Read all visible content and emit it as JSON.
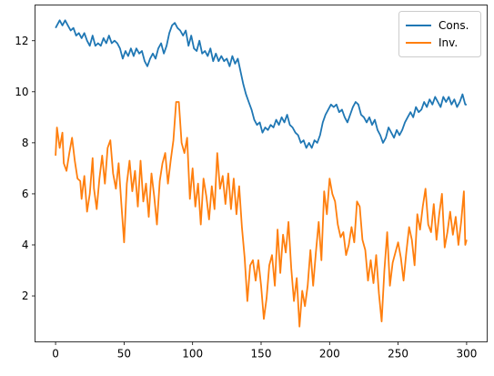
{
  "chart_data": {
    "type": "line",
    "title": "",
    "xlabel": "",
    "ylabel": "",
    "xlim": [
      -15,
      315
    ],
    "ylim": [
      0.2,
      13.4
    ],
    "xticks": [
      0,
      50,
      100,
      150,
      200,
      250,
      300
    ],
    "yticks": [
      2,
      4,
      6,
      8,
      10,
      12
    ],
    "grid": false,
    "legend_position": "top-right",
    "series": [
      {
        "name": "Cons.",
        "color": "#1f77b4",
        "points": [
          [
            0,
            12.5
          ],
          [
            3,
            12.8
          ],
          [
            5,
            12.6
          ],
          [
            7,
            12.8
          ],
          [
            9,
            12.6
          ],
          [
            11,
            12.4
          ],
          [
            13,
            12.5
          ],
          [
            15,
            12.2
          ],
          [
            17,
            12.3
          ],
          [
            19,
            12.1
          ],
          [
            21,
            12.3
          ],
          [
            23,
            12.0
          ],
          [
            25,
            11.8
          ],
          [
            27,
            12.2
          ],
          [
            29,
            11.8
          ],
          [
            31,
            11.9
          ],
          [
            33,
            11.8
          ],
          [
            35,
            12.1
          ],
          [
            37,
            11.9
          ],
          [
            39,
            12.2
          ],
          [
            41,
            11.9
          ],
          [
            43,
            12.0
          ],
          [
            45,
            11.9
          ],
          [
            47,
            11.7
          ],
          [
            49,
            11.3
          ],
          [
            51,
            11.6
          ],
          [
            53,
            11.4
          ],
          [
            55,
            11.7
          ],
          [
            57,
            11.4
          ],
          [
            59,
            11.7
          ],
          [
            61,
            11.5
          ],
          [
            63,
            11.6
          ],
          [
            65,
            11.2
          ],
          [
            67,
            11.0
          ],
          [
            69,
            11.3
          ],
          [
            71,
            11.5
          ],
          [
            73,
            11.3
          ],
          [
            75,
            11.7
          ],
          [
            77,
            11.9
          ],
          [
            79,
            11.5
          ],
          [
            81,
            11.8
          ],
          [
            83,
            12.3
          ],
          [
            85,
            12.6
          ],
          [
            87,
            12.7
          ],
          [
            89,
            12.5
          ],
          [
            91,
            12.4
          ],
          [
            93,
            12.2
          ],
          [
            95,
            12.4
          ],
          [
            97,
            11.8
          ],
          [
            99,
            12.2
          ],
          [
            101,
            11.7
          ],
          [
            103,
            11.6
          ],
          [
            105,
            12.0
          ],
          [
            107,
            11.5
          ],
          [
            109,
            11.6
          ],
          [
            111,
            11.4
          ],
          [
            113,
            11.7
          ],
          [
            115,
            11.2
          ],
          [
            117,
            11.5
          ],
          [
            119,
            11.2
          ],
          [
            121,
            11.4
          ],
          [
            123,
            11.2
          ],
          [
            125,
            11.3
          ],
          [
            127,
            11.0
          ],
          [
            129,
            11.4
          ],
          [
            131,
            11.1
          ],
          [
            133,
            11.3
          ],
          [
            135,
            10.8
          ],
          [
            137,
            10.3
          ],
          [
            139,
            9.9
          ],
          [
            141,
            9.6
          ],
          [
            143,
            9.3
          ],
          [
            145,
            8.9
          ],
          [
            147,
            8.7
          ],
          [
            149,
            8.8
          ],
          [
            151,
            8.4
          ],
          [
            153,
            8.6
          ],
          [
            155,
            8.5
          ],
          [
            157,
            8.7
          ],
          [
            159,
            8.6
          ],
          [
            161,
            8.9
          ],
          [
            163,
            8.7
          ],
          [
            165,
            9.0
          ],
          [
            167,
            8.8
          ],
          [
            169,
            9.1
          ],
          [
            171,
            8.7
          ],
          [
            173,
            8.6
          ],
          [
            175,
            8.4
          ],
          [
            177,
            8.3
          ],
          [
            179,
            8.0
          ],
          [
            181,
            8.1
          ],
          [
            183,
            7.8
          ],
          [
            185,
            8.0
          ],
          [
            187,
            7.8
          ],
          [
            189,
            8.1
          ],
          [
            191,
            8.0
          ],
          [
            193,
            8.3
          ],
          [
            195,
            8.8
          ],
          [
            197,
            9.1
          ],
          [
            199,
            9.3
          ],
          [
            201,
            9.5
          ],
          [
            203,
            9.4
          ],
          [
            205,
            9.5
          ],
          [
            207,
            9.2
          ],
          [
            209,
            9.3
          ],
          [
            211,
            9.0
          ],
          [
            213,
            8.8
          ],
          [
            215,
            9.1
          ],
          [
            217,
            9.4
          ],
          [
            219,
            9.6
          ],
          [
            221,
            9.5
          ],
          [
            223,
            9.1
          ],
          [
            225,
            9.0
          ],
          [
            227,
            8.8
          ],
          [
            229,
            9.0
          ],
          [
            231,
            8.7
          ],
          [
            233,
            8.9
          ],
          [
            235,
            8.5
          ],
          [
            237,
            8.3
          ],
          [
            239,
            8.0
          ],
          [
            241,
            8.2
          ],
          [
            243,
            8.6
          ],
          [
            245,
            8.4
          ],
          [
            247,
            8.2
          ],
          [
            249,
            8.5
          ],
          [
            251,
            8.3
          ],
          [
            253,
            8.5
          ],
          [
            255,
            8.8
          ],
          [
            257,
            9.0
          ],
          [
            259,
            9.2
          ],
          [
            261,
            9.0
          ],
          [
            263,
            9.4
          ],
          [
            265,
            9.2
          ],
          [
            267,
            9.3
          ],
          [
            269,
            9.6
          ],
          [
            271,
            9.4
          ],
          [
            273,
            9.7
          ],
          [
            275,
            9.5
          ],
          [
            277,
            9.8
          ],
          [
            279,
            9.6
          ],
          [
            281,
            9.4
          ],
          [
            283,
            9.8
          ],
          [
            285,
            9.6
          ],
          [
            287,
            9.8
          ],
          [
            289,
            9.5
          ],
          [
            291,
            9.7
          ],
          [
            293,
            9.4
          ],
          [
            295,
            9.6
          ],
          [
            297,
            9.9
          ],
          [
            299,
            9.5
          ],
          [
            300,
            9.5
          ]
        ]
      },
      {
        "name": "Inv.",
        "color": "#ff7f0e",
        "points": [
          [
            0,
            7.5
          ],
          [
            1,
            8.6
          ],
          [
            3,
            7.8
          ],
          [
            5,
            8.4
          ],
          [
            6,
            7.2
          ],
          [
            8,
            6.9
          ],
          [
            10,
            7.6
          ],
          [
            12,
            8.2
          ],
          [
            14,
            7.3
          ],
          [
            16,
            6.6
          ],
          [
            18,
            6.5
          ],
          [
            19,
            5.8
          ],
          [
            21,
            6.7
          ],
          [
            23,
            5.3
          ],
          [
            25,
            6.0
          ],
          [
            27,
            7.4
          ],
          [
            28,
            6.2
          ],
          [
            30,
            5.4
          ],
          [
            32,
            6.6
          ],
          [
            34,
            7.5
          ],
          [
            36,
            6.4
          ],
          [
            38,
            7.8
          ],
          [
            40,
            8.1
          ],
          [
            42,
            6.8
          ],
          [
            44,
            6.2
          ],
          [
            46,
            7.2
          ],
          [
            48,
            5.6
          ],
          [
            50,
            4.1
          ],
          [
            52,
            6.4
          ],
          [
            54,
            7.3
          ],
          [
            56,
            6.1
          ],
          [
            58,
            6.9
          ],
          [
            60,
            5.5
          ],
          [
            62,
            7.3
          ],
          [
            64,
            5.7
          ],
          [
            66,
            6.4
          ],
          [
            68,
            5.1
          ],
          [
            70,
            6.8
          ],
          [
            72,
            5.9
          ],
          [
            74,
            4.8
          ],
          [
            76,
            6.5
          ],
          [
            78,
            7.2
          ],
          [
            80,
            7.6
          ],
          [
            82,
            6.4
          ],
          [
            84,
            7.3
          ],
          [
            86,
            8.1
          ],
          [
            88,
            9.6
          ],
          [
            90,
            9.6
          ],
          [
            92,
            8.0
          ],
          [
            94,
            7.6
          ],
          [
            96,
            8.2
          ],
          [
            98,
            5.8
          ],
          [
            100,
            7.0
          ],
          [
            102,
            5.5
          ],
          [
            104,
            6.4
          ],
          [
            106,
            4.8
          ],
          [
            108,
            6.6
          ],
          [
            110,
            5.9
          ],
          [
            112,
            5.0
          ],
          [
            114,
            6.3
          ],
          [
            116,
            5.4
          ],
          [
            118,
            7.6
          ],
          [
            120,
            6.2
          ],
          [
            122,
            6.7
          ],
          [
            124,
            5.6
          ],
          [
            126,
            6.8
          ],
          [
            128,
            5.4
          ],
          [
            130,
            6.6
          ],
          [
            132,
            5.2
          ],
          [
            134,
            6.3
          ],
          [
            136,
            4.7
          ],
          [
            138,
            3.5
          ],
          [
            140,
            1.8
          ],
          [
            142,
            3.2
          ],
          [
            144,
            3.4
          ],
          [
            146,
            2.6
          ],
          [
            148,
            3.4
          ],
          [
            150,
            2.4
          ],
          [
            152,
            1.1
          ],
          [
            154,
            1.9
          ],
          [
            156,
            3.2
          ],
          [
            158,
            3.6
          ],
          [
            160,
            2.4
          ],
          [
            162,
            4.6
          ],
          [
            164,
            2.9
          ],
          [
            166,
            4.4
          ],
          [
            168,
            3.7
          ],
          [
            170,
            4.9
          ],
          [
            172,
            3.1
          ],
          [
            174,
            1.8
          ],
          [
            176,
            2.7
          ],
          [
            178,
            0.8
          ],
          [
            180,
            2.2
          ],
          [
            182,
            1.6
          ],
          [
            184,
            2.4
          ],
          [
            186,
            3.8
          ],
          [
            188,
            2.4
          ],
          [
            190,
            3.7
          ],
          [
            192,
            4.9
          ],
          [
            194,
            3.4
          ],
          [
            196,
            6.1
          ],
          [
            198,
            5.2
          ],
          [
            200,
            6.6
          ],
          [
            202,
            6.0
          ],
          [
            204,
            5.7
          ],
          [
            206,
            4.8
          ],
          [
            208,
            4.3
          ],
          [
            210,
            4.5
          ],
          [
            212,
            3.6
          ],
          [
            214,
            4.0
          ],
          [
            216,
            4.7
          ],
          [
            218,
            4.1
          ],
          [
            220,
            5.7
          ],
          [
            222,
            5.5
          ],
          [
            224,
            4.2
          ],
          [
            226,
            3.8
          ],
          [
            228,
            2.6
          ],
          [
            230,
            3.4
          ],
          [
            232,
            2.5
          ],
          [
            234,
            3.6
          ],
          [
            236,
            2.1
          ],
          [
            238,
            1.0
          ],
          [
            240,
            3.0
          ],
          [
            242,
            4.5
          ],
          [
            244,
            2.4
          ],
          [
            246,
            3.3
          ],
          [
            248,
            3.7
          ],
          [
            250,
            4.1
          ],
          [
            252,
            3.5
          ],
          [
            254,
            2.6
          ],
          [
            256,
            3.7
          ],
          [
            258,
            4.7
          ],
          [
            260,
            4.2
          ],
          [
            262,
            3.2
          ],
          [
            264,
            5.2
          ],
          [
            266,
            4.6
          ],
          [
            268,
            5.5
          ],
          [
            270,
            6.2
          ],
          [
            272,
            4.8
          ],
          [
            274,
            4.5
          ],
          [
            276,
            5.6
          ],
          [
            278,
            4.2
          ],
          [
            280,
            5.2
          ],
          [
            282,
            6.0
          ],
          [
            284,
            3.9
          ],
          [
            286,
            4.5
          ],
          [
            288,
            5.3
          ],
          [
            290,
            4.4
          ],
          [
            292,
            5.1
          ],
          [
            294,
            4.0
          ],
          [
            296,
            4.9
          ],
          [
            298,
            6.1
          ],
          [
            299,
            4.0
          ],
          [
            300,
            4.2
          ]
        ]
      }
    ]
  }
}
